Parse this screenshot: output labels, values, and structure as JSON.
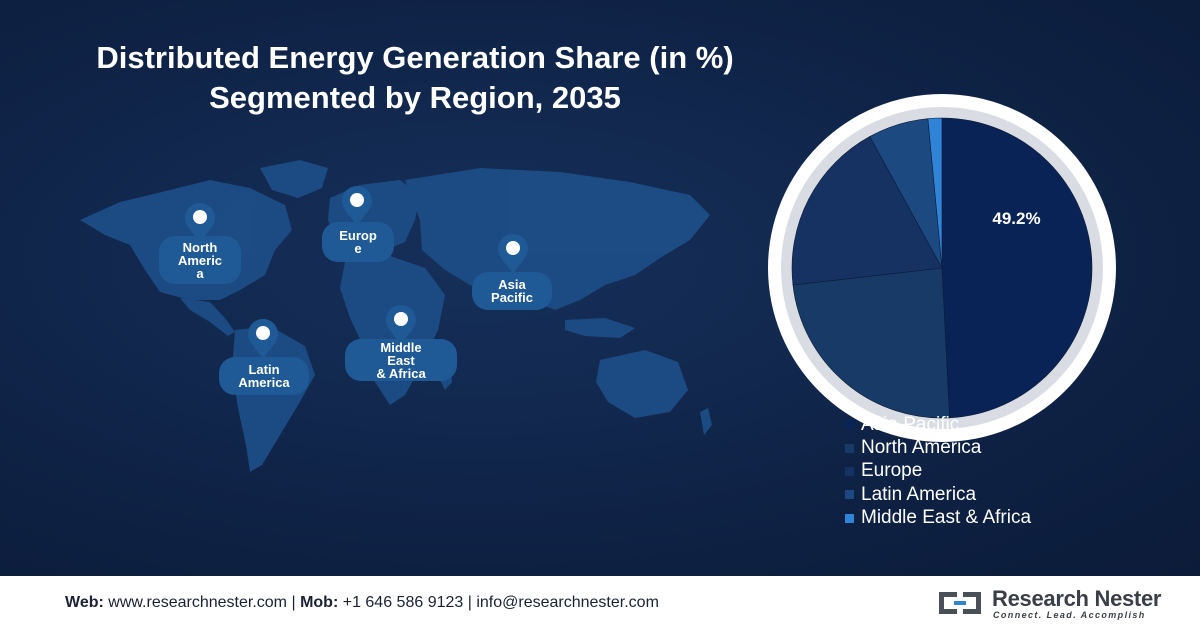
{
  "title": {
    "line1": "Distributed Energy Generation Share (in %)",
    "line2": "Segmented by Region, 2035"
  },
  "map_labels": [
    {
      "id": "north-america",
      "text": "North\nAmeric\na"
    },
    {
      "id": "europe",
      "text": "Europ\ne"
    },
    {
      "id": "asia-pacific",
      "text": "Asia\nPacific"
    },
    {
      "id": "latin-america",
      "text": "Latin\nAmerica"
    },
    {
      "id": "middle-east-africa",
      "text": "Middle\nEast\n& Africa"
    }
  ],
  "chart_data": {
    "type": "pie",
    "title": "Distributed Energy Generation Share (in %)",
    "subtitle": "Segmented by Region, 2035",
    "categories": [
      "Asia Pacific",
      "North America",
      "Europe",
      "Latin America",
      "Middle East & Africa"
    ],
    "values": [
      49.2,
      24.0,
      18.8,
      6.5,
      1.5
    ],
    "labels": [
      "49.2%",
      "",
      "",
      "",
      ""
    ],
    "colors": [
      "#0a2356",
      "#173a66",
      "#153263",
      "#1c4a80",
      "#2f84d8"
    ],
    "legend": "bottom-right"
  },
  "footer": {
    "web_label": "Web:",
    "web_value": "www.researchnester.com",
    "sep1": "|",
    "mob_label": "Mob:",
    "mob_value": "+1 646 586 9123",
    "sep2": "|",
    "email": "info@researchnester.com"
  },
  "logo": {
    "name": "Research Nester",
    "tagline": "Connect. Lead. Accomplish"
  }
}
